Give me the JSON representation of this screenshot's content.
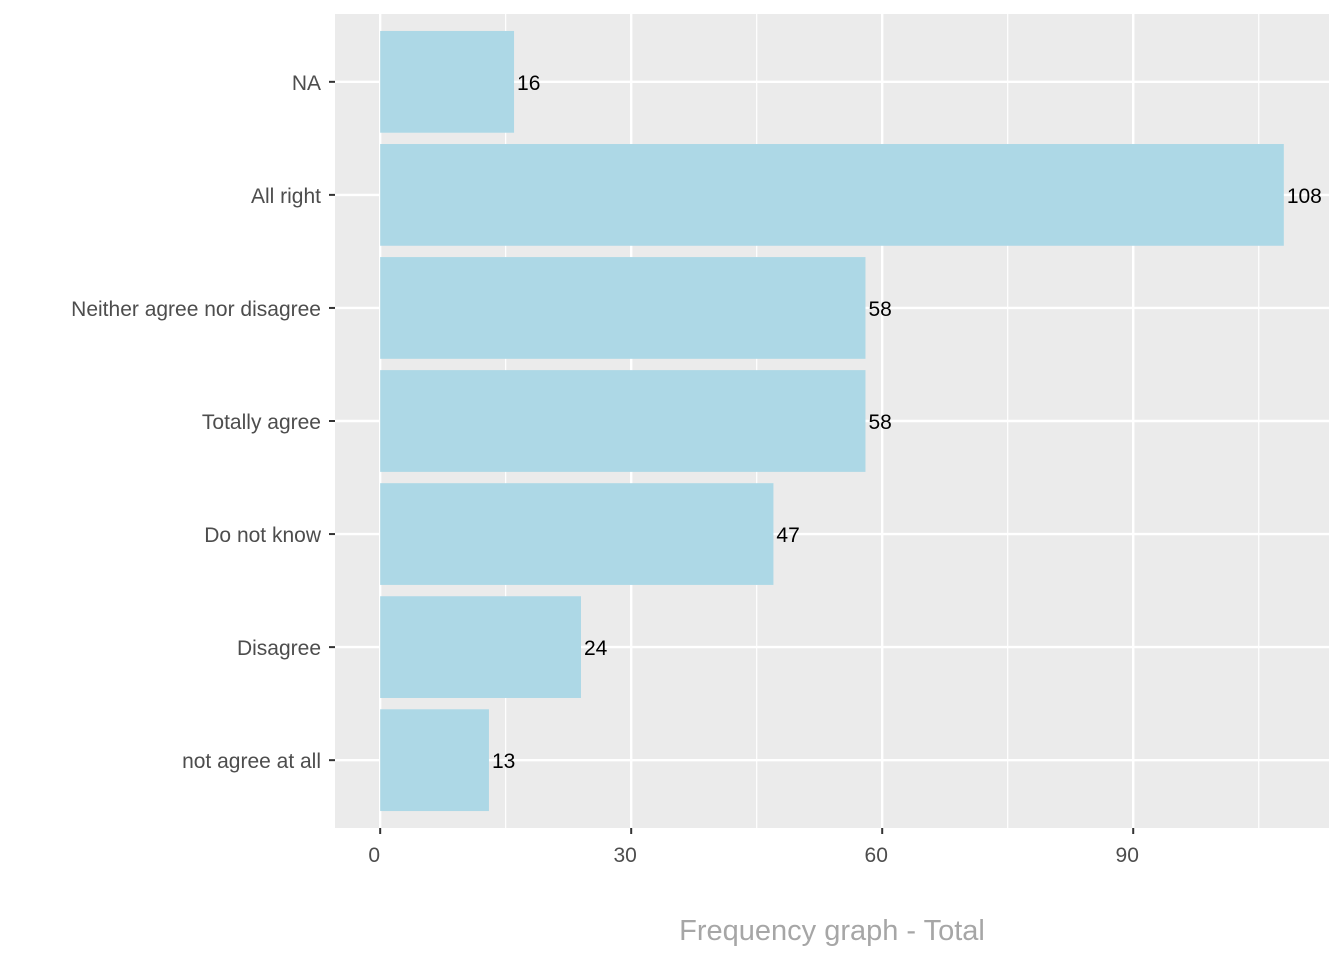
{
  "chart_data": {
    "type": "bar",
    "orientation": "horizontal",
    "title": "",
    "xlabel": "Frequency graph - Total",
    "ylabel": "",
    "categories": [
      "NA",
      "All right",
      "Neither agree nor disagree",
      "Totally agree",
      "Do not know",
      "Disagree",
      "not agree at all"
    ],
    "values": [
      16,
      108,
      58,
      58,
      47,
      24,
      13
    ],
    "xlim": [
      -5.4,
      113.4
    ],
    "xticks": [
      0,
      30,
      60,
      90
    ],
    "xtick_labels": [
      "0",
      "30",
      "60",
      "90"
    ],
    "grid": true,
    "legend": "none",
    "colors": {
      "bar": "#add8e6",
      "panel": "#ebebeb",
      "grid": "#ffffff",
      "tick_text": "#4d4d4d",
      "label_text": "#000000",
      "axis_title": "#a6a6a6"
    }
  }
}
